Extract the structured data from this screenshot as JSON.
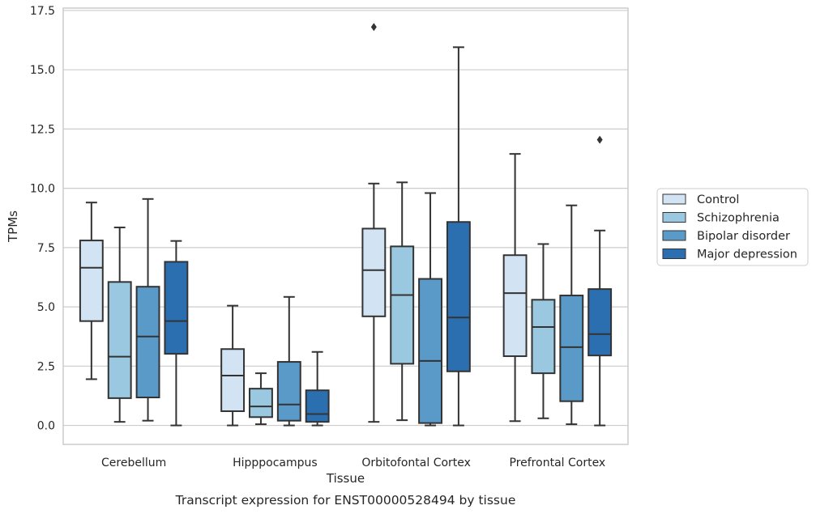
{
  "caption": "Transcript expression for ENST00000528494 by tissue",
  "chart_data": {
    "type": "box",
    "title": "",
    "xlabel": "Tissue",
    "ylabel": "TPMs",
    "ylim": [
      -0.8,
      17.6
    ],
    "yticks": [
      "0.0",
      "2.5",
      "5.0",
      "7.5",
      "10.0",
      "12.5",
      "15.0",
      "17.5"
    ],
    "grid": "horizontal",
    "legend_position": "right",
    "categories": [
      "Cerebellum",
      "Hipppocampus",
      "Orbitofontal Cortex",
      "Prefrontal Cortex"
    ],
    "series": [
      {
        "name": "Control",
        "color": "#d2e3f3",
        "boxes": [
          {
            "whislo": 1.95,
            "q1": 4.4,
            "med": 6.65,
            "q3": 7.8,
            "whishi": 9.4,
            "fliers": []
          },
          {
            "whislo": 0.0,
            "q1": 0.6,
            "med": 2.1,
            "q3": 3.22,
            "whishi": 5.05,
            "fliers": []
          },
          {
            "whislo": 0.15,
            "q1": 4.6,
            "med": 6.55,
            "q3": 8.3,
            "whishi": 10.2,
            "fliers": [
              16.8
            ]
          },
          {
            "whislo": 0.18,
            "q1": 2.92,
            "med": 5.58,
            "q3": 7.18,
            "whishi": 11.45,
            "fliers": []
          }
        ]
      },
      {
        "name": "Schizophrenia",
        "color": "#9ac8e0",
        "boxes": [
          {
            "whislo": 0.15,
            "q1": 1.15,
            "med": 2.9,
            "q3": 6.05,
            "whishi": 8.35,
            "fliers": []
          },
          {
            "whislo": 0.05,
            "q1": 0.35,
            "med": 0.8,
            "q3": 1.55,
            "whishi": 2.2,
            "fliers": []
          },
          {
            "whislo": 0.22,
            "q1": 2.6,
            "med": 5.5,
            "q3": 7.55,
            "whishi": 10.25,
            "fliers": []
          },
          {
            "whislo": 0.3,
            "q1": 2.2,
            "med": 4.15,
            "q3": 5.3,
            "whishi": 7.65,
            "fliers": []
          }
        ]
      },
      {
        "name": "Bipolar disorder",
        "color": "#5a9ac9",
        "boxes": [
          {
            "whislo": 0.2,
            "q1": 1.18,
            "med": 3.75,
            "q3": 5.85,
            "whishi": 9.55,
            "fliers": []
          },
          {
            "whislo": 0.0,
            "q1": 0.2,
            "med": 0.88,
            "q3": 2.68,
            "whishi": 5.42,
            "fliers": []
          },
          {
            "whislo": 0.0,
            "q1": 0.1,
            "med": 2.72,
            "q3": 6.18,
            "whishi": 9.8,
            "fliers": []
          },
          {
            "whislo": 0.05,
            "q1": 1.02,
            "med": 3.3,
            "q3": 5.48,
            "whishi": 9.28,
            "fliers": []
          }
        ]
      },
      {
        "name": "Major depression",
        "color": "#2c6fb0",
        "boxes": [
          {
            "whislo": 0.0,
            "q1": 3.02,
            "med": 4.4,
            "q3": 6.9,
            "whishi": 7.78,
            "fliers": []
          },
          {
            "whislo": 0.0,
            "q1": 0.15,
            "med": 0.48,
            "q3": 1.48,
            "whishi": 3.1,
            "fliers": []
          },
          {
            "whislo": 0.0,
            "q1": 2.28,
            "med": 4.55,
            "q3": 8.58,
            "whishi": 15.95,
            "fliers": []
          },
          {
            "whislo": 0.0,
            "q1": 2.95,
            "med": 3.85,
            "q3": 5.75,
            "whishi": 8.22,
            "fliers": [
              12.05
            ]
          }
        ]
      }
    ]
  }
}
